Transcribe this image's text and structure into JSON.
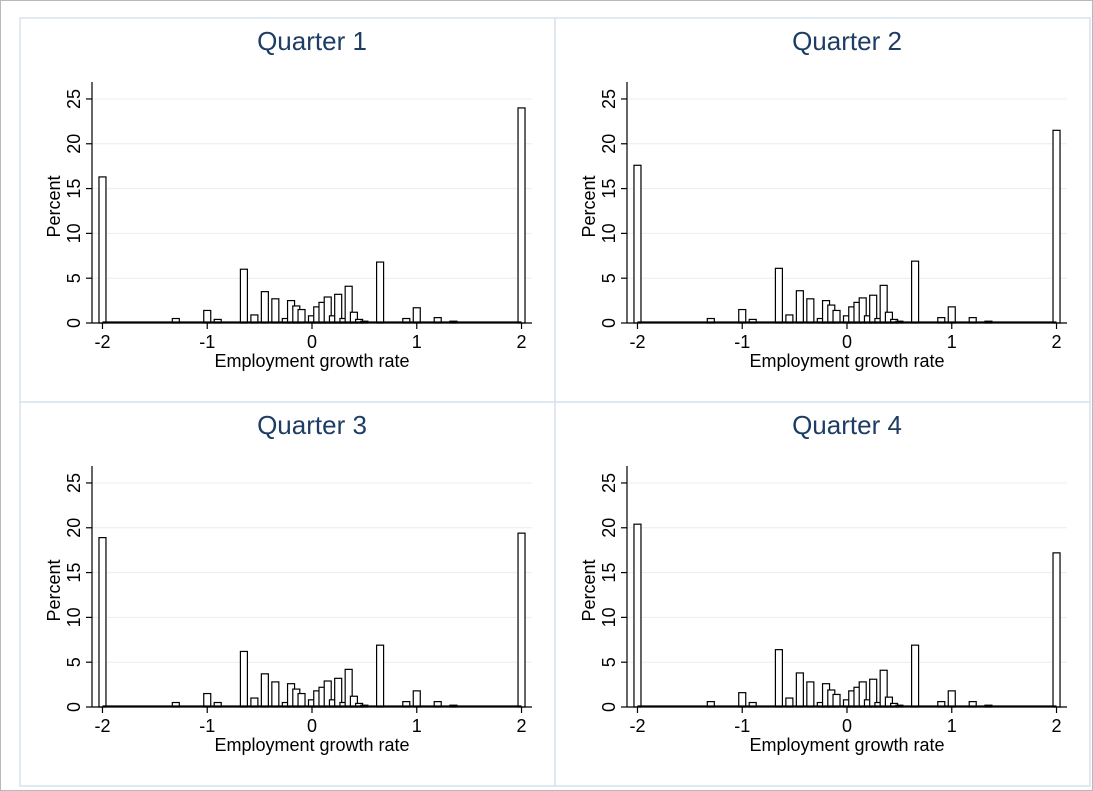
{
  "chart_data": [
    {
      "type": "bar",
      "title": "Quarter 1",
      "xlabel": "Employment growth rate",
      "ylabel": "Percent",
      "xlim": [
        -2.1,
        2.1
      ],
      "ylim": [
        0,
        26
      ],
      "xticks": [
        -2,
        -1,
        0,
        1,
        2
      ],
      "yticks": [
        0,
        5,
        10,
        15,
        20,
        25
      ],
      "grid": true,
      "x": [
        -2.0,
        -1.3,
        -1.0,
        -0.9,
        -0.65,
        -0.55,
        -0.45,
        -0.35,
        -0.25,
        -0.2,
        -0.15,
        -0.1,
        0.0,
        0.05,
        0.1,
        0.15,
        0.2,
        0.25,
        0.3,
        0.35,
        0.4,
        0.45,
        0.5,
        0.65,
        0.9,
        1.0,
        1.2,
        1.35,
        2.0
      ],
      "values": [
        16.3,
        0.5,
        1.4,
        0.4,
        6.0,
        0.9,
        3.5,
        2.7,
        0.5,
        2.5,
        1.9,
        1.5,
        0.8,
        1.8,
        2.3,
        2.9,
        0.8,
        3.2,
        0.5,
        4.1,
        1.2,
        0.4,
        0.2,
        6.8,
        0.5,
        1.7,
        0.6,
        0.2,
        24.0
      ]
    },
    {
      "type": "bar",
      "title": "Quarter 2",
      "xlabel": "Employment growth rate",
      "ylabel": "Percent",
      "xlim": [
        -2.1,
        2.1
      ],
      "ylim": [
        0,
        26
      ],
      "xticks": [
        -2,
        -1,
        0,
        1,
        2
      ],
      "yticks": [
        0,
        5,
        10,
        15,
        20,
        25
      ],
      "grid": true,
      "x": [
        -2.0,
        -1.3,
        -1.0,
        -0.9,
        -0.65,
        -0.55,
        -0.45,
        -0.35,
        -0.25,
        -0.2,
        -0.15,
        -0.1,
        0.0,
        0.05,
        0.1,
        0.15,
        0.2,
        0.25,
        0.3,
        0.35,
        0.4,
        0.45,
        0.5,
        0.65,
        0.9,
        1.0,
        1.2,
        1.35,
        2.0
      ],
      "values": [
        17.6,
        0.5,
        1.5,
        0.4,
        6.1,
        0.9,
        3.6,
        2.7,
        0.5,
        2.5,
        2.0,
        1.4,
        0.8,
        1.8,
        2.3,
        2.8,
        0.8,
        3.1,
        0.5,
        4.2,
        1.2,
        0.4,
        0.2,
        6.9,
        0.6,
        1.8,
        0.6,
        0.2,
        21.5
      ]
    },
    {
      "type": "bar",
      "title": "Quarter 3",
      "xlabel": "Employment growth rate",
      "ylabel": "Percent",
      "xlim": [
        -2.1,
        2.1
      ],
      "ylim": [
        0,
        26
      ],
      "xticks": [
        -2,
        -1,
        0,
        1,
        2
      ],
      "yticks": [
        0,
        5,
        10,
        15,
        20,
        25
      ],
      "grid": true,
      "x": [
        -2.0,
        -1.3,
        -1.0,
        -0.9,
        -0.65,
        -0.55,
        -0.45,
        -0.35,
        -0.25,
        -0.2,
        -0.15,
        -0.1,
        0.0,
        0.05,
        0.1,
        0.15,
        0.2,
        0.25,
        0.3,
        0.35,
        0.4,
        0.45,
        0.5,
        0.65,
        0.9,
        1.0,
        1.2,
        1.35,
        2.0
      ],
      "values": [
        18.9,
        0.5,
        1.5,
        0.5,
        6.2,
        1.0,
        3.7,
        2.8,
        0.5,
        2.6,
        2.0,
        1.5,
        0.8,
        1.8,
        2.2,
        2.9,
        0.8,
        3.2,
        0.5,
        4.2,
        1.2,
        0.4,
        0.2,
        6.9,
        0.6,
        1.8,
        0.6,
        0.2,
        19.4
      ]
    },
    {
      "type": "bar",
      "title": "Quarter 4",
      "xlabel": "Employment growth rate",
      "ylabel": "Percent",
      "xlim": [
        -2.1,
        2.1
      ],
      "ylim": [
        0,
        26
      ],
      "xticks": [
        -2,
        -1,
        0,
        1,
        2
      ],
      "yticks": [
        0,
        5,
        10,
        15,
        20,
        25
      ],
      "grid": true,
      "x": [
        -2.0,
        -1.3,
        -1.0,
        -0.9,
        -0.65,
        -0.55,
        -0.45,
        -0.35,
        -0.25,
        -0.2,
        -0.15,
        -0.1,
        0.0,
        0.05,
        0.1,
        0.15,
        0.2,
        0.25,
        0.3,
        0.35,
        0.4,
        0.45,
        0.5,
        0.65,
        0.9,
        1.0,
        1.2,
        1.35,
        2.0
      ],
      "values": [
        20.4,
        0.6,
        1.6,
        0.5,
        6.4,
        1.0,
        3.8,
        2.8,
        0.5,
        2.6,
        1.9,
        1.4,
        0.8,
        1.8,
        2.2,
        2.8,
        0.8,
        3.1,
        0.5,
        4.1,
        1.1,
        0.4,
        0.2,
        6.9,
        0.6,
        1.8,
        0.6,
        0.2,
        17.2
      ]
    }
  ]
}
